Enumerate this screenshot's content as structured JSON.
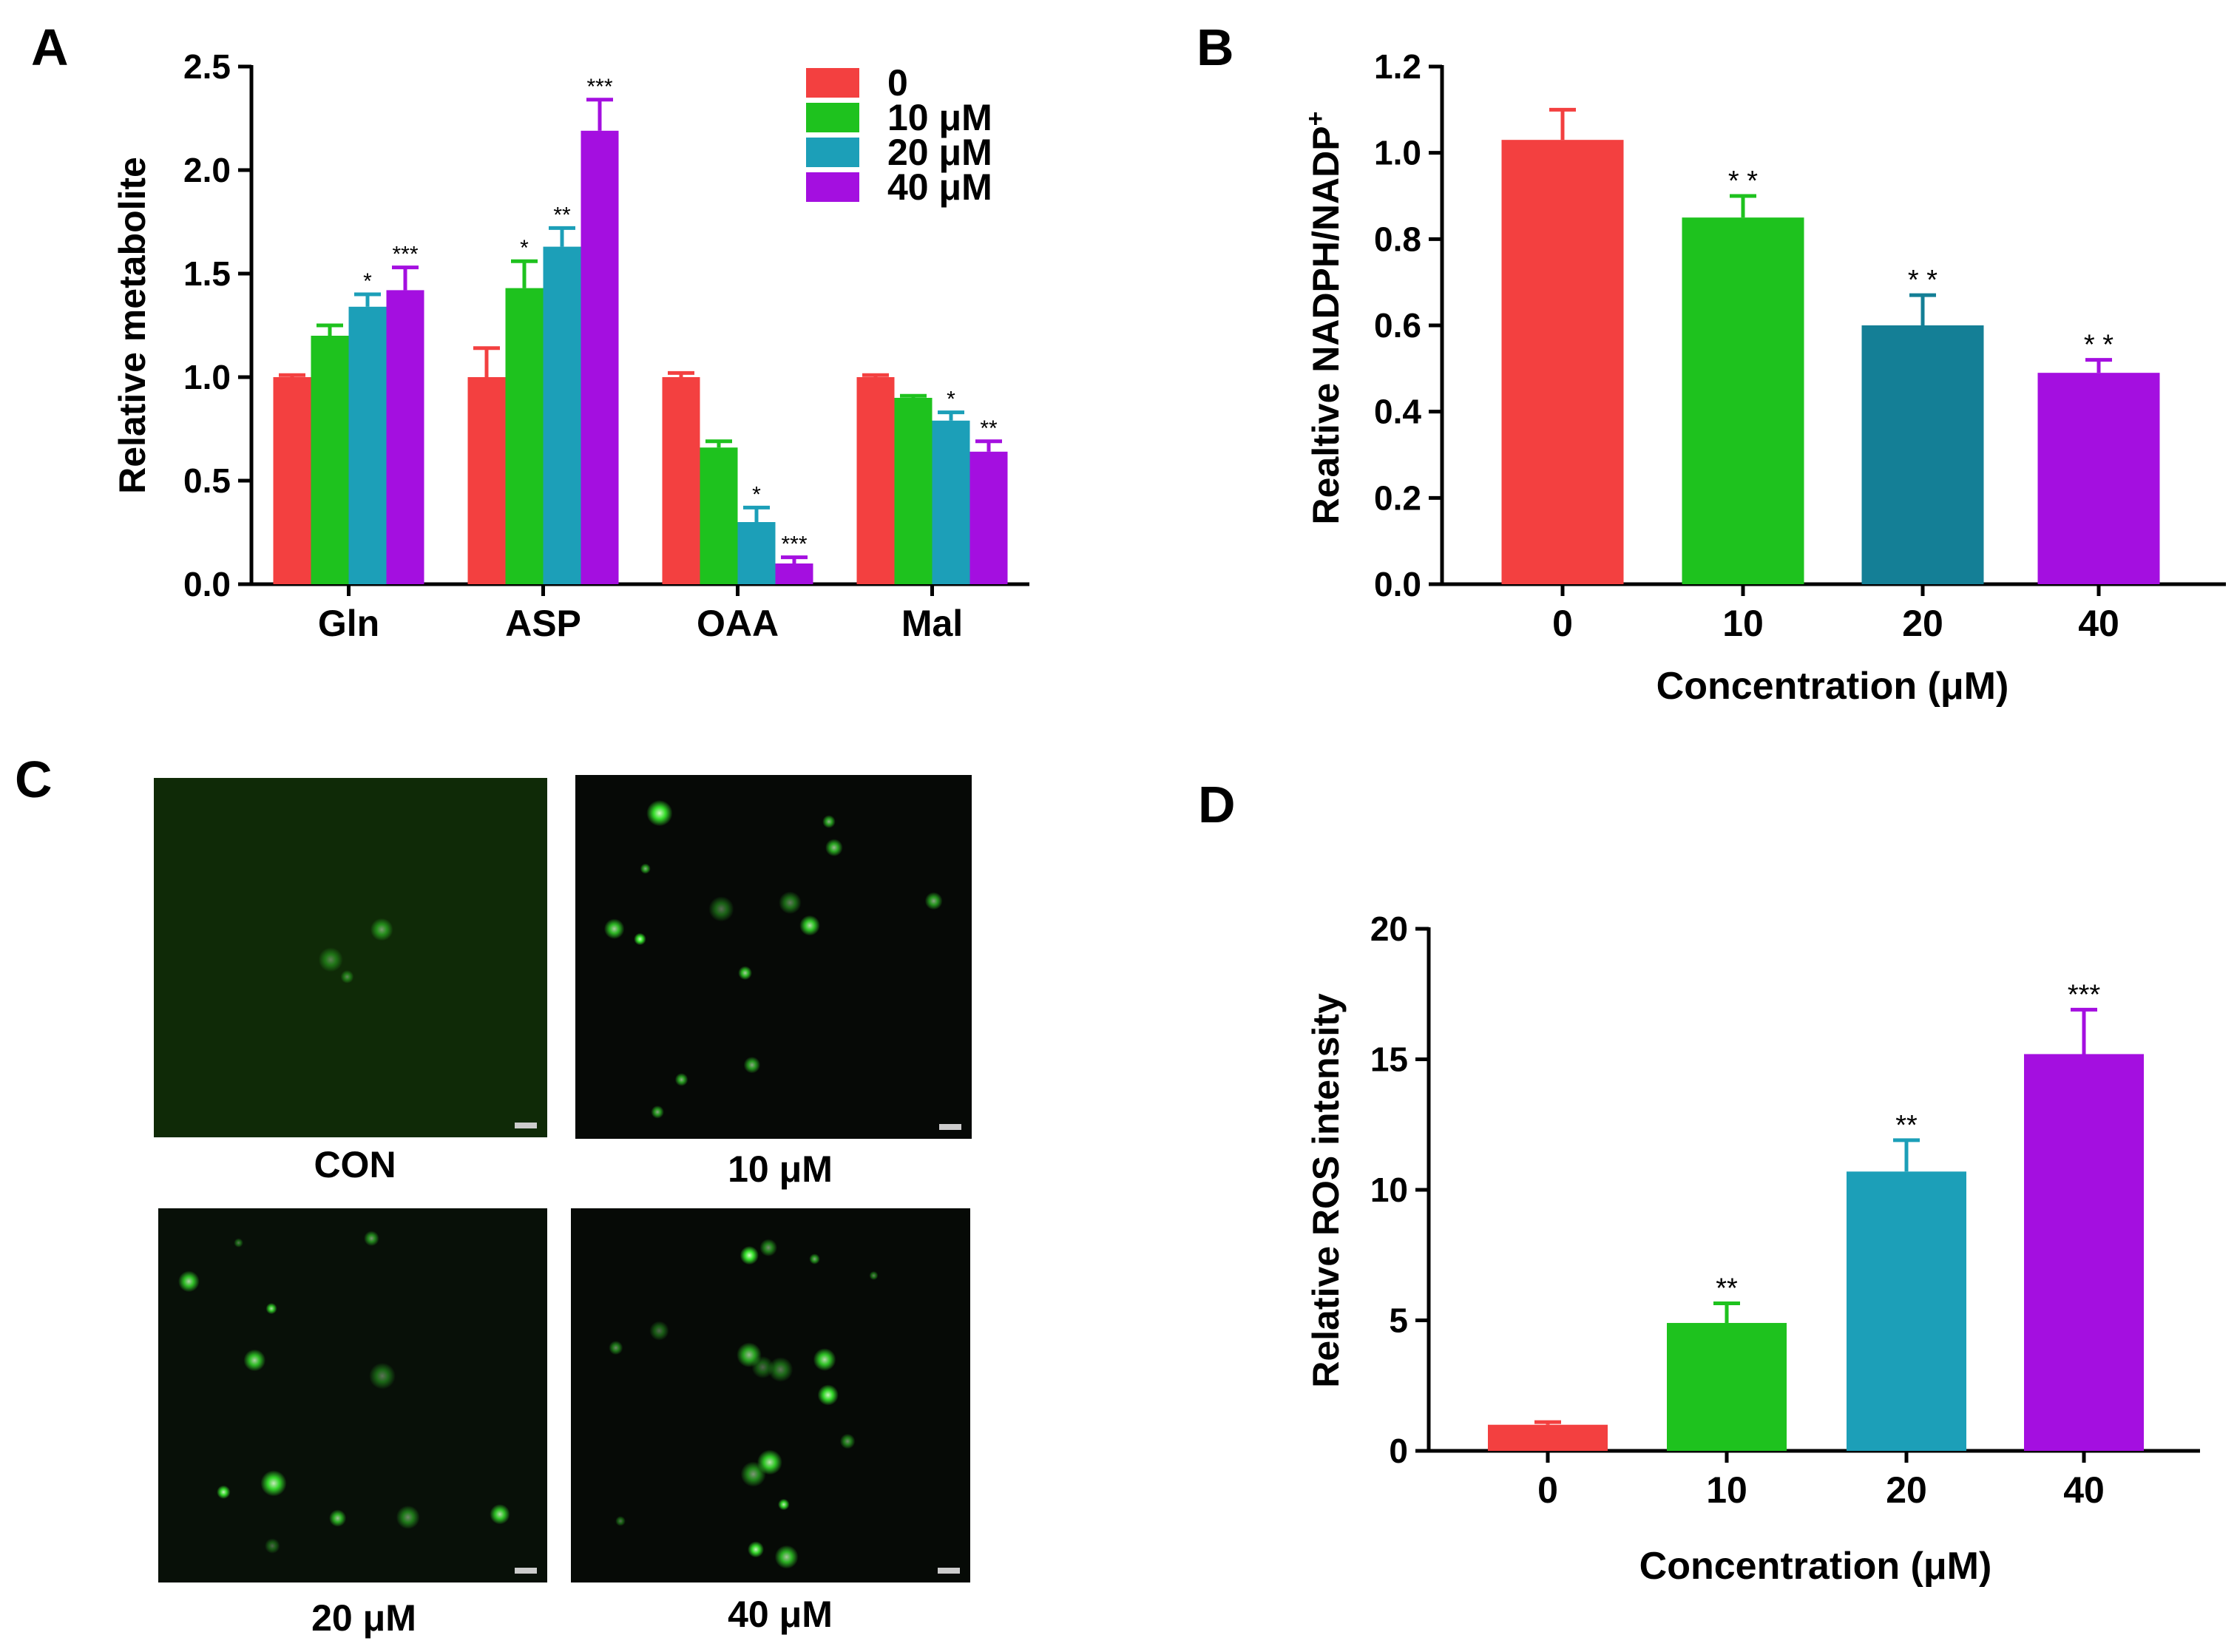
{
  "colors": {
    "red": "#f34040",
    "green": "#1ec21e",
    "teal": "#1c9fb8",
    "tealDark": "#147f96",
    "purple": "#a40fe0",
    "axis": "#000000",
    "micro_bg": "#0c140a",
    "cell": "#37e62c"
  },
  "panels": {
    "A": "A",
    "B": "B",
    "C": "C",
    "D": "D"
  },
  "chart_data": [
    {
      "id": "A",
      "type": "bar",
      "title": "",
      "ylabel": "Relative metabolite",
      "xlabel": "",
      "categories": [
        "Gln",
        "ASP",
        "OAA",
        "Mal"
      ],
      "ylim": [
        0,
        2.5
      ],
      "yticks": [
        "0.0",
        "0.5",
        "1.0",
        "1.5",
        "2.0",
        "2.5"
      ],
      "legend_position": "top-right",
      "series": [
        {
          "name": "0",
          "color": "#f34040",
          "values": [
            1.0,
            1.0,
            1.0,
            1.0
          ],
          "errors": [
            0.01,
            0.14,
            0.02,
            0.01
          ],
          "sig": [
            "",
            "",
            "",
            ""
          ]
        },
        {
          "name": "10 μM",
          "color": "#1ec21e",
          "values": [
            1.2,
            1.43,
            0.66,
            0.9
          ],
          "errors": [
            0.05,
            0.13,
            0.03,
            0.01
          ],
          "sig": [
            "",
            "*",
            "",
            ""
          ]
        },
        {
          "name": "20 μM",
          "color": "#1c9fb8",
          "values": [
            1.34,
            1.63,
            0.3,
            0.79
          ],
          "errors": [
            0.06,
            0.09,
            0.07,
            0.04
          ],
          "sig": [
            "*",
            "**",
            "*",
            "*"
          ]
        },
        {
          "name": "40 μM",
          "color": "#a40fe0",
          "values": [
            1.42,
            2.19,
            0.1,
            0.64
          ],
          "errors": [
            0.11,
            0.15,
            0.03,
            0.05
          ],
          "sig": [
            "***",
            "***",
            "***",
            "**"
          ]
        }
      ]
    },
    {
      "id": "B",
      "type": "bar",
      "title": "",
      "ylabel": "Realtive NADPH/NADP",
      "ylabel_sup": "+",
      "xlabel": "Concentration (μM)",
      "categories": [
        "0",
        "10",
        "20",
        "40"
      ],
      "ylim": [
        0,
        1.2
      ],
      "yticks": [
        "0.0",
        "0.2",
        "0.4",
        "0.6",
        "0.8",
        "1.0",
        "1.2"
      ],
      "values": [
        1.03,
        0.85,
        0.6,
        0.49
      ],
      "errors": [
        0.07,
        0.05,
        0.07,
        0.03
      ],
      "colors": [
        "#f34040",
        "#1ec21e",
        "#147f96",
        "#a40fe0"
      ],
      "sig": [
        "",
        "* *",
        "* *",
        "* *"
      ]
    },
    {
      "id": "D",
      "type": "bar",
      "title": "",
      "ylabel": "Relative ROS intensity",
      "xlabel": "Concentration (μM)",
      "categories": [
        "0",
        "10",
        "20",
        "40"
      ],
      "ylim": [
        0,
        20
      ],
      "yticks": [
        "0",
        "5",
        "10",
        "15",
        "20"
      ],
      "values": [
        1.0,
        4.9,
        10.7,
        15.2
      ],
      "errors": [
        0.1,
        0.75,
        1.2,
        1.7
      ],
      "colors": [
        "#f34040",
        "#1ec21e",
        "#1c9fb8",
        "#a40fe0"
      ],
      "sig": [
        "",
        "**",
        "**",
        "***"
      ]
    }
  ],
  "micrographs": {
    "labels": [
      "CON",
      "10 μM",
      "20 μM",
      "40 μM"
    ],
    "background_tints": [
      "#0f2a07",
      "#060906",
      "#081008",
      "#060a06"
    ],
    "cell_counts": [
      3,
      14,
      12,
      18
    ]
  }
}
